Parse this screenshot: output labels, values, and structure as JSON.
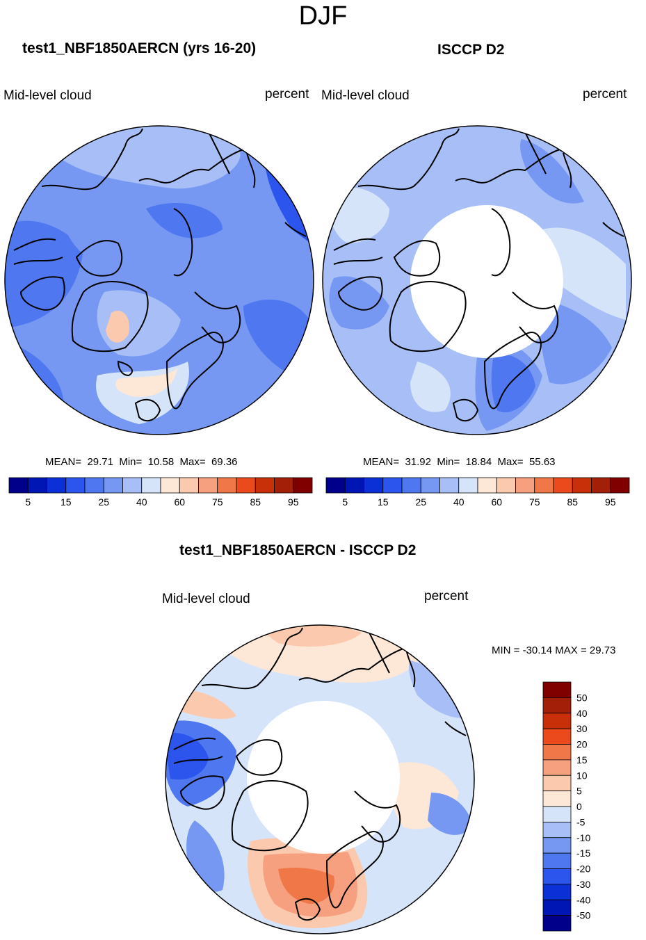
{
  "header": {
    "title": "DJF"
  },
  "panels": [
    {
      "title": "test1_NBF1850AERCN (yrs 16-20)",
      "left_label": "Mid-level cloud",
      "right_label": "percent",
      "stats": {
        "mean_label": "MEAN=",
        "mean": "29.71",
        "min_label": "Min=",
        "min": "10.58",
        "max_label": "Max=",
        "max": "69.36"
      },
      "colorbar": {
        "ticks": [
          "5",
          "15",
          "25",
          "40",
          "60",
          "75",
          "85",
          "95"
        ],
        "colors": [
          "#00008b",
          "#0016b4",
          "#0a30d6",
          "#2b55ec",
          "#4f77f0",
          "#7698f2",
          "#a7bff6",
          "#d6e4fa",
          "#fde8d8",
          "#fbcaae",
          "#f6a07f",
          "#f07748",
          "#eb4a1c",
          "#c8300a",
          "#a41f08",
          "#800000"
        ]
      }
    },
    {
      "title": "ISCCP D2",
      "left_label": "Mid-level cloud",
      "right_label": "percent",
      "stats": {
        "mean_label": "MEAN=",
        "mean": "31.92",
        "min_label": "Min=",
        "min": "18.84",
        "max_label": "Max=",
        "max": "55.63"
      },
      "colorbar": {
        "ticks": [
          "5",
          "15",
          "25",
          "40",
          "60",
          "75",
          "85",
          "95"
        ],
        "colors": [
          "#00008b",
          "#0016b4",
          "#0a30d6",
          "#2b55ec",
          "#4f77f0",
          "#7698f2",
          "#a7bff6",
          "#d6e4fa",
          "#fde8d8",
          "#fbcaae",
          "#f6a07f",
          "#f07748",
          "#eb4a1c",
          "#c8300a",
          "#a41f08",
          "#800000"
        ]
      }
    }
  ],
  "difference": {
    "title": "test1_NBF1850AERCN - ISCCP D2",
    "left_label": "Mid-level cloud",
    "right_label": "percent",
    "minmax": "MIN = -30.14 MAX =  29.73",
    "colorbar": {
      "ticks": [
        "50",
        "40",
        "30",
        "20",
        "15",
        "10",
        "5",
        "0",
        "-5",
        "-10",
        "-15",
        "-20",
        "-30",
        "-40",
        "-50"
      ],
      "colors": [
        "#800000",
        "#a41f08",
        "#c8300a",
        "#eb4a1c",
        "#f07748",
        "#f6a07f",
        "#fbcaae",
        "#fde8d8",
        "#d6e4fa",
        "#a7bff6",
        "#7698f2",
        "#4f77f0",
        "#2b55ec",
        "#0a30d6",
        "#0016b4",
        "#00008b"
      ]
    }
  }
}
